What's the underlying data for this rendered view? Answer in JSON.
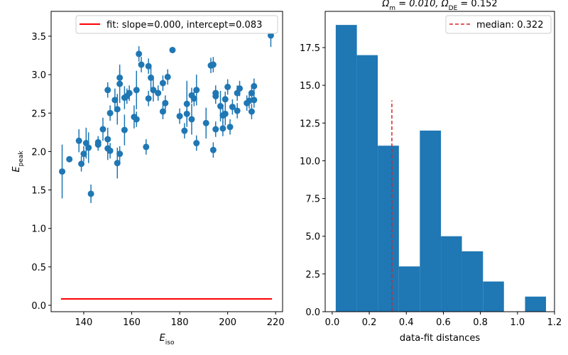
{
  "chart_data": [
    {
      "type": "scatter",
      "xlabel": [
        "E",
        "iso"
      ],
      "ylabel": [
        "E",
        "peak"
      ],
      "xlim": [
        126.4,
        222.9
      ],
      "ylim": [
        -0.083,
        3.823
      ],
      "xticks": [
        140,
        160,
        180,
        200,
        220
      ],
      "yticks": [
        {
          "value": 0,
          "label": "0.0"
        },
        0.5,
        {
          "value": 1,
          "label": "1.0"
        },
        1.5,
        {
          "value": 2,
          "label": "2.0"
        },
        2.5,
        {
          "value": 3,
          "label": "3.0"
        },
        3.5
      ],
      "color": "#1f77b4",
      "x": [
        131,
        134,
        138,
        139,
        140,
        141,
        142,
        143,
        146,
        146,
        148,
        150,
        150,
        150,
        151,
        151,
        153,
        154,
        154,
        155,
        155,
        155,
        157,
        157,
        158,
        159,
        161,
        162,
        162,
        163,
        164,
        166,
        167,
        167,
        168,
        169,
        171,
        173,
        173,
        174,
        175,
        177,
        180,
        182,
        183,
        183,
        185,
        185,
        186,
        187,
        187,
        191,
        193,
        194,
        194,
        195,
        195,
        195,
        197,
        198,
        198,
        199,
        199,
        200,
        201,
        202,
        204,
        204,
        205,
        208,
        209,
        210,
        210,
        211,
        211,
        218
      ],
      "values": [
        1.74,
        1.9,
        2.14,
        1.84,
        1.97,
        2.11,
        2.05,
        1.45,
        2.12,
        2.09,
        2.29,
        2.04,
        2.16,
        2.8,
        2.01,
        2.5,
        2.67,
        1.85,
        2.55,
        2.88,
        2.96,
        1.97,
        2.28,
        2.7,
        2.72,
        2.76,
        2.45,
        2.8,
        2.42,
        3.27,
        3.13,
        2.06,
        2.69,
        3.11,
        2.96,
        2.8,
        2.76,
        2.52,
        2.89,
        2.63,
        2.97,
        3.32,
        2.46,
        2.27,
        2.62,
        2.49,
        2.42,
        2.73,
        2.69,
        2.11,
        2.8,
        2.37,
        3.12,
        2.02,
        3.13,
        2.72,
        2.76,
        2.29,
        2.59,
        2.3,
        2.47,
        2.49,
        2.68,
        2.84,
        2.32,
        2.58,
        2.53,
        2.76,
        2.82,
        2.63,
        2.66,
        2.52,
        2.76,
        2.85,
        2.67,
        3.51
      ],
      "errors": [
        0.35,
        0,
        0.15,
        0.1,
        0.1,
        0.2,
        0.2,
        0.12,
        0.08,
        0.08,
        0.15,
        0.15,
        0.15,
        0.1,
        0.1,
        0.1,
        0.15,
        0.2,
        0.2,
        0.25,
        0.1,
        0.1,
        0.2,
        0.15,
        0.1,
        0.1,
        0.15,
        0.25,
        0.1,
        0.1,
        0.1,
        0.1,
        0.1,
        0.1,
        0.15,
        0.15,
        0.1,
        0.1,
        0.1,
        0.1,
        0.1,
        0,
        0.1,
        0.1,
        0.3,
        0.15,
        0.2,
        0.1,
        0.1,
        0.1,
        0.2,
        0.2,
        0.1,
        0.1,
        0.1,
        0.1,
        0.1,
        0.1,
        0.2,
        0.1,
        0.1,
        0.15,
        0.1,
        0.1,
        0.1,
        0.1,
        0.1,
        0.1,
        0.1,
        0.1,
        0.1,
        0.1,
        0.1,
        0.1,
        0.1,
        0.15
      ],
      "fit": {
        "label": "fit: slope=0.000, intercept=0.083",
        "slope": 0,
        "intercept": 0.083,
        "xrange": [
          130.5,
          218.5
        ],
        "color": "#ff0000"
      },
      "legend": "upper right"
    },
    {
      "type": "histogram",
      "title": [
        "Ω",
        "m",
        " = 0.010, Ω",
        "DE",
        " = 0.152"
      ],
      "xlabel": "data-fit distances",
      "xlim": [
        -0.038,
        1.2
      ],
      "ylim": [
        0,
        19.9
      ],
      "xticks": [
        {
          "value": 0,
          "label": "0.0"
        },
        0.2,
        0.4,
        0.6,
        0.8,
        {
          "value": 1,
          "label": "1.0"
        },
        1.2
      ],
      "yticks": [
        {
          "value": 0,
          "label": "0.0"
        },
        2.5,
        {
          "value": 5,
          "label": "5.0"
        },
        7.5,
        {
          "value": 10,
          "label": "10.0"
        },
        12.5,
        {
          "value": 15,
          "label": "15.0"
        },
        17.5
      ],
      "color": "#1f77b4",
      "bins": [
        0.019,
        0.133,
        0.246,
        0.36,
        0.473,
        0.587,
        0.7,
        0.814,
        0.927,
        1.041,
        1.154
      ],
      "counts": [
        19,
        17,
        11,
        3,
        12,
        5,
        4,
        2,
        0,
        1
      ],
      "median": {
        "label": "median: 0.322",
        "value": 0.322,
        "ymax": 14,
        "color": "#d62728"
      },
      "legend": "upper right"
    }
  ]
}
